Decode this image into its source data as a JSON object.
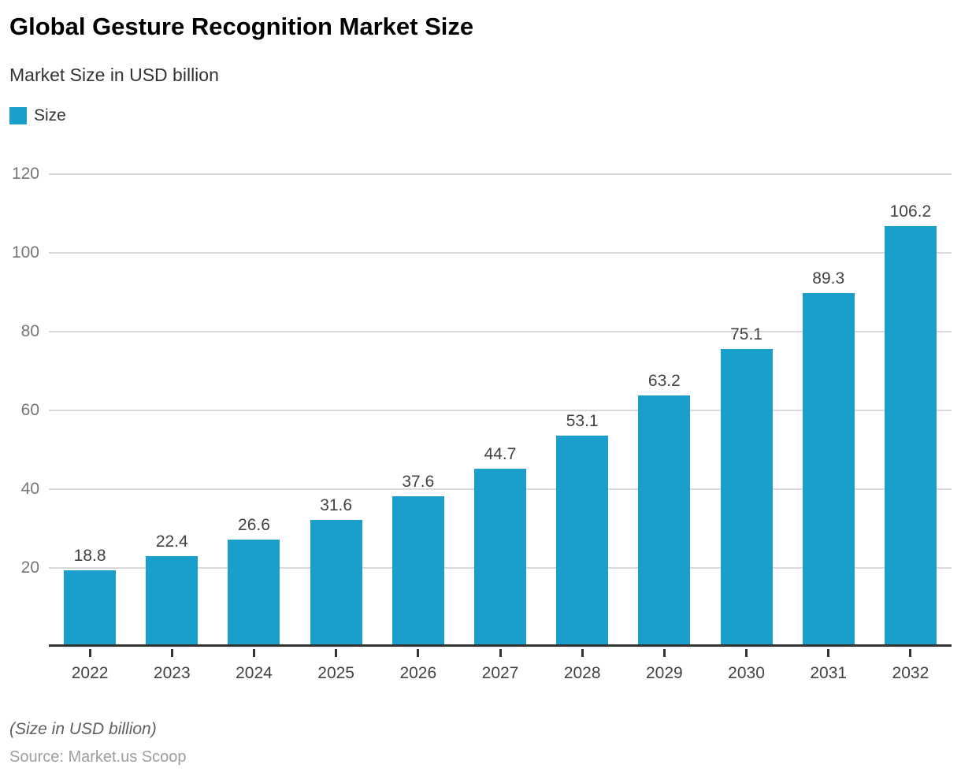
{
  "header": {
    "title": "Global Gesture Recognition Market Size",
    "subtitle": "Market Size in USD billion",
    "legend": {
      "label": "Size",
      "color": "#1A9FCD"
    }
  },
  "chart_data": {
    "type": "bar",
    "title": "Global Gesture Recognition Market Size",
    "subtitle": "Market Size in USD billion",
    "categories": [
      "2022",
      "2023",
      "2024",
      "2025",
      "2026",
      "2027",
      "2028",
      "2029",
      "2030",
      "2031",
      "2032"
    ],
    "series": [
      {
        "name": "Size",
        "values": [
          18.8,
          22.4,
          26.6,
          31.6,
          37.6,
          44.7,
          53.1,
          63.2,
          75.1,
          89.3,
          106.2
        ]
      }
    ],
    "xlabel": "",
    "ylabel": "",
    "ylim": [
      0,
      120
    ],
    "yticks": [
      20,
      40,
      60,
      80,
      100,
      120
    ],
    "grid": true,
    "legend_position": "top-left",
    "bar_color": "#1A9FCD",
    "value_labels_shown": true
  },
  "footer": {
    "note": "(Size in USD billion)",
    "source": "Source: Market.us Scoop"
  },
  "colors": {
    "bar": "#1A9FCD",
    "gridline": "#d9d9d9",
    "axis": "#333333",
    "y_tick_text": "#757575",
    "x_tick_text": "#424242",
    "value_text": "#424242"
  }
}
